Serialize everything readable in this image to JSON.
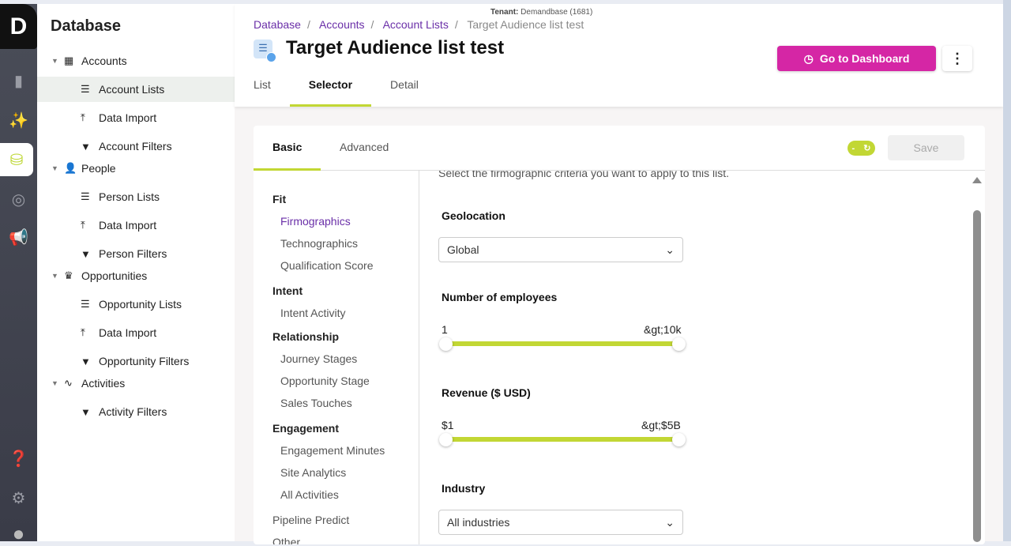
{
  "rail": {
    "logo": "D",
    "icons": [
      "analytics-icon",
      "magic-wand-icon",
      "database-icon",
      "target-icon",
      "megaphone-icon",
      "help-icon",
      "settings-icon",
      "avatar"
    ]
  },
  "sidebar": {
    "title": "Database",
    "groups": [
      {
        "label": "Accounts",
        "icon": "building-icon",
        "items": [
          {
            "label": "Account Lists",
            "icon": "list-icon"
          },
          {
            "label": "Data Import",
            "icon": "upload-icon"
          },
          {
            "label": "Account Filters",
            "icon": "filter-icon"
          }
        ]
      },
      {
        "label": "People",
        "icon": "person-icon",
        "items": [
          {
            "label": "Person Lists",
            "icon": "list-icon"
          },
          {
            "label": "Data Import",
            "icon": "upload-icon"
          },
          {
            "label": "Person Filters",
            "icon": "filter-icon"
          }
        ]
      },
      {
        "label": "Opportunities",
        "icon": "crown-icon",
        "items": [
          {
            "label": "Opportunity Lists",
            "icon": "list-icon"
          },
          {
            "label": "Data Import",
            "icon": "upload-icon"
          },
          {
            "label": "Opportunity Filters",
            "icon": "filter-icon"
          }
        ]
      },
      {
        "label": "Activities",
        "icon": "pulse-icon",
        "items": [
          {
            "label": "Activity Filters",
            "icon": "filter-icon"
          }
        ]
      }
    ]
  },
  "header": {
    "tenant_label": "Tenant:",
    "tenant_value": "Demandbase (1681)",
    "breadcrumb": [
      "Database",
      "Accounts",
      "Account Lists",
      "Target Audience list test"
    ],
    "title": "Target Audience list test",
    "tabs": [
      "List",
      "Selector",
      "Detail"
    ],
    "dashboard_button": "Go to Dashboard"
  },
  "card": {
    "tabs": [
      "Basic",
      "Advanced"
    ],
    "toggle": "-",
    "save": "Save",
    "nav": [
      {
        "label": "Fit",
        "type": "h"
      },
      {
        "label": "Firmographics",
        "type": "sub sel"
      },
      {
        "label": "Technographics",
        "type": "sub"
      },
      {
        "label": "Qualification Score",
        "type": "sub"
      },
      {
        "label": "Intent",
        "type": "h"
      },
      {
        "label": "Intent Activity",
        "type": "sub"
      },
      {
        "label": "Relationship",
        "type": "h"
      },
      {
        "label": "Journey Stages",
        "type": "sub"
      },
      {
        "label": "Opportunity Stage",
        "type": "sub"
      },
      {
        "label": "Sales Touches",
        "type": "sub"
      },
      {
        "label": "Engagement",
        "type": "h"
      },
      {
        "label": "Engagement Minutes",
        "type": "sub"
      },
      {
        "label": "Site Analytics",
        "type": "sub"
      },
      {
        "label": "All Activities",
        "type": "sub"
      },
      {
        "label": "Pipeline Predict",
        "type": ""
      },
      {
        "label": "Other",
        "type": ""
      }
    ],
    "description": "Select the firmographic criteria you want to apply to this list.",
    "geolocation": {
      "label": "Geolocation",
      "value": "Global"
    },
    "employees": {
      "label": "Number of employees",
      "min": "1",
      "max": "&gt;10k"
    },
    "revenue": {
      "label": "Revenue ($ USD)",
      "min": "$1",
      "max": "&gt;$5B"
    },
    "industry": {
      "label": "Industry",
      "value": "All industries"
    }
  },
  "colors": {
    "accent": "#c2d734",
    "brand": "#d526a5",
    "link": "#6a2fa8"
  }
}
